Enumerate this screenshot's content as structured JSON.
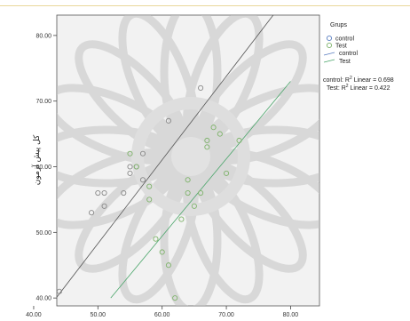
{
  "chart_data": {
    "type": "scatter",
    "ylabel": "کل پیش آزمون",
    "xlim": [
      40,
      85
    ],
    "ylim": [
      40,
      85
    ],
    "x_ticks": [
      "40.00",
      "50.00",
      "60.00",
      "70.00",
      "80.00"
    ],
    "y_ticks": [
      "40.00",
      "50.00",
      "60.00",
      "70.00",
      "80.00"
    ],
    "legend": {
      "title": "Grups",
      "position": "top-right",
      "entries": [
        {
          "label": "control",
          "kind": "marker",
          "color": "#5b7fc1"
        },
        {
          "label": "Test",
          "kind": "marker",
          "color": "#7fb36b"
        },
        {
          "label": "control",
          "kind": "line",
          "color": "#5b7fc1"
        },
        {
          "label": "Test",
          "kind": "line",
          "color": "#4aa56a"
        }
      ]
    },
    "annotations": [
      {
        "prefix": "control: R",
        "sup": "2",
        "suffix": " Linear = 0.698"
      },
      {
        "prefix": "Test: R",
        "sup": "2",
        "suffix": " Linear = 0.422"
      }
    ],
    "series": [
      {
        "name": "control",
        "color": "#888888",
        "points": [
          [
            44,
            41
          ],
          [
            49,
            53
          ],
          [
            50,
            56
          ],
          [
            51,
            54
          ],
          [
            51,
            56
          ],
          [
            54,
            56
          ],
          [
            55,
            59
          ],
          [
            55,
            60
          ],
          [
            56,
            60
          ],
          [
            57,
            58
          ],
          [
            57,
            62
          ],
          [
            61,
            67
          ],
          [
            66,
            72
          ]
        ]
      },
      {
        "name": "Test",
        "color": "#7fb36b",
        "points": [
          [
            55,
            62
          ],
          [
            56,
            60
          ],
          [
            58,
            57
          ],
          [
            58,
            55
          ],
          [
            59,
            49
          ],
          [
            60,
            47
          ],
          [
            61,
            45
          ],
          [
            62,
            40
          ],
          [
            63,
            52
          ],
          [
            64,
            56
          ],
          [
            64,
            58
          ],
          [
            65,
            54
          ],
          [
            66,
            56
          ],
          [
            67,
            63
          ],
          [
            67,
            64
          ],
          [
            68,
            66
          ],
          [
            69,
            65
          ],
          [
            70,
            59
          ],
          [
            72,
            64
          ]
        ]
      }
    ],
    "fit_lines": [
      {
        "name": "control",
        "color": "#555555",
        "x": [
          43.5,
          78
        ],
        "y": [
          40,
          84
        ]
      },
      {
        "name": "Test",
        "color": "#4aa56a",
        "x": [
          52,
          80
        ],
        "y": [
          40,
          73
        ]
      }
    ]
  }
}
